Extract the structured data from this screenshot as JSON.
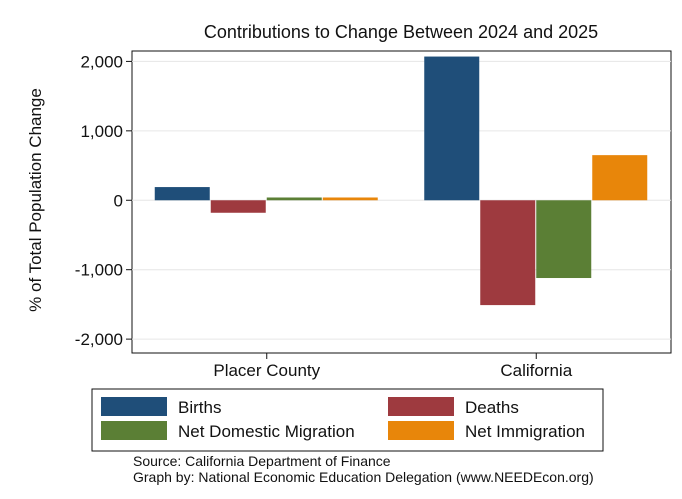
{
  "chart_data": {
    "type": "bar",
    "title": "Contributions to Change Between 2024 and 2025",
    "xlabel": "",
    "ylabel": "% of Total Population Change",
    "categories": [
      "Placer County",
      "California"
    ],
    "series": [
      {
        "name": "Births",
        "color": "#1f4e79",
        "values": [
          190,
          2070
        ]
      },
      {
        "name": "Deaths",
        "color": "#9e3a3f",
        "values": [
          -180,
          -1510
        ]
      },
      {
        "name": "Net Domestic Migration",
        "color": "#5b7f35",
        "values": [
          40,
          -1120
        ]
      },
      {
        "name": "Net Immigration",
        "color": "#e8860a",
        "values": [
          40,
          650
        ]
      }
    ],
    "ylim": [
      -2200,
      2150
    ],
    "yticks": [
      2000,
      1000,
      0,
      -1000,
      -2000
    ],
    "ytick_labels": [
      "2,000",
      "1,000",
      "0",
      "-1,000",
      "-2,000"
    ],
    "grid": true,
    "legend_position": "bottom"
  },
  "footer": {
    "source": "Source: California Department of Finance",
    "credit": "Graph by: National Economic Education Delegation (www.NEEDEcon.org)"
  }
}
